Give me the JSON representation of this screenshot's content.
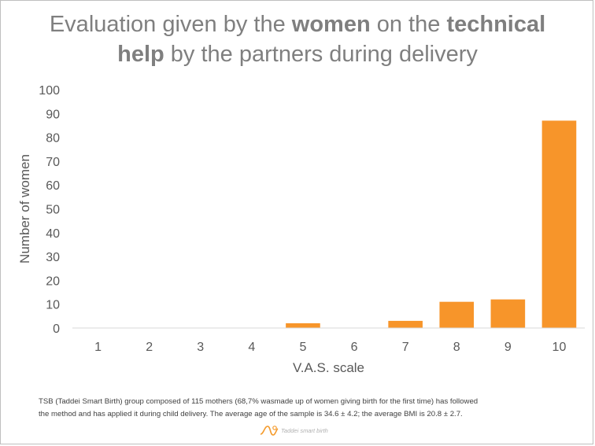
{
  "title": {
    "parts": [
      {
        "text": "Evaluation given by the ",
        "bold": false
      },
      {
        "text": "women",
        "bold": true
      },
      {
        "text": " on the ",
        "bold": false
      },
      {
        "text": "technical",
        "bold": true
      },
      {
        "text": "help",
        "bold": true
      },
      {
        "text": " by the partners during delivery",
        "bold": false
      }
    ]
  },
  "caption": {
    "line1": "TSB (Taddei Smart Birth) group composed of 115 mothers (68,7% wasmade up of women giving birth for the first time) has followed",
    "line2": "the method and has applied it during child delivery. The average age of the sample is 34.6 ± 4.2; the average BMI is 20.8 ± 2.7."
  },
  "logo": {
    "text": "Taddei smart birth",
    "icon": "wave-logo-icon",
    "color": "#f59b2c"
  },
  "chart_data": {
    "type": "bar",
    "categories": [
      "1",
      "2",
      "3",
      "4",
      "5",
      "6",
      "7",
      "8",
      "9",
      "10"
    ],
    "values": [
      0,
      0,
      0,
      0,
      2,
      0,
      3,
      11,
      12,
      87
    ],
    "xlabel": "V.A.S. scale",
    "ylabel": "Number of women",
    "ylim": [
      0,
      100
    ],
    "yticks": [
      0,
      10,
      20,
      30,
      40,
      50,
      60,
      70,
      80,
      90,
      100
    ],
    "grid": false,
    "legend": "none",
    "bar_color": "#f7952a",
    "axis_color": "#d9d9d9",
    "text_color": "#595959"
  }
}
